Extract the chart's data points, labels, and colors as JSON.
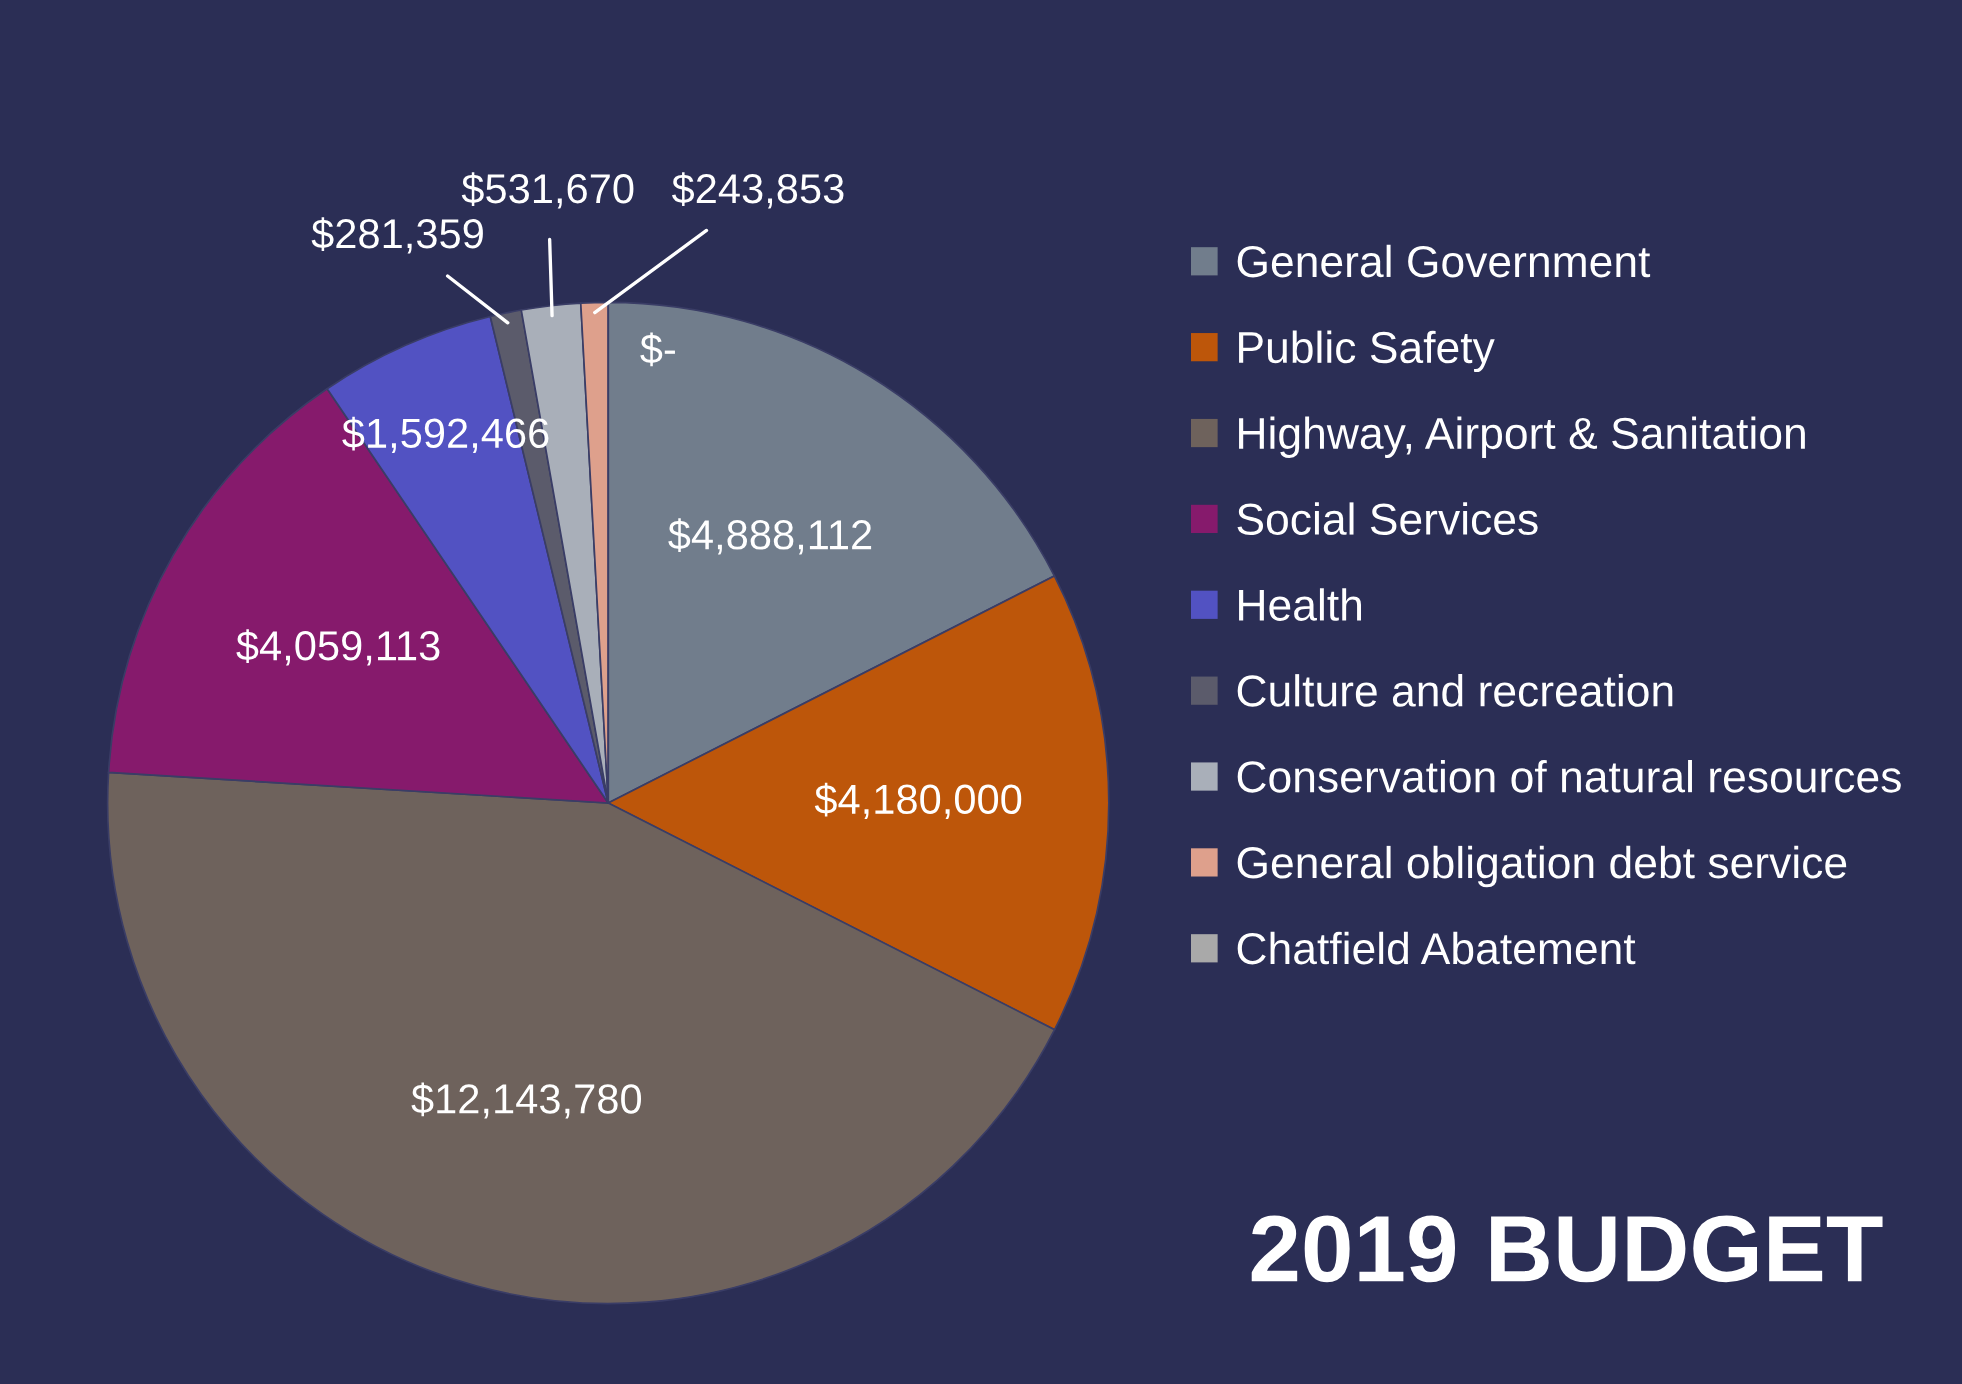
{
  "chart_data": {
    "type": "pie",
    "title": "2019 BUDGET",
    "categories": [
      "General Government",
      "Public Safety",
      "Highway, Airport & Sanitation",
      "Social Services",
      "Health",
      "Culture and recreation",
      "Conservation of natural resources",
      "General obligation debt service",
      "Chatfield Abatement"
    ],
    "values": [
      4888112,
      4180000,
      12143780,
      4059113,
      1592466,
      281359,
      531670,
      243853,
      0
    ],
    "value_labels": [
      "$4,888,112",
      "$4,180,000",
      "$12,143,780",
      "$4,059,113",
      "$1,592,466",
      "$281,359",
      "$531,670",
      "$243,853",
      "$-"
    ],
    "colors": [
      "#717d8c",
      "#bd560a",
      "#6e625c",
      "#861a6c",
      "#5252c2",
      "#5b5b6b",
      "#a9afb9",
      "#dea08c",
      "#a9a9a9"
    ],
    "legend": "right"
  }
}
